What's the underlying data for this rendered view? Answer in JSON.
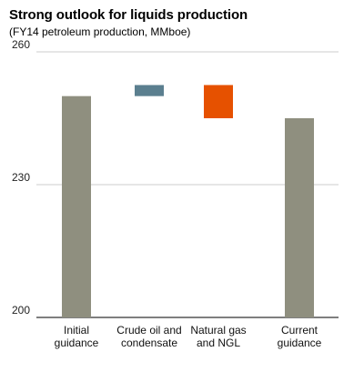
{
  "chart_data": {
    "type": "waterfall",
    "title": "Strong outlook for liquids production",
    "subtitle": "(FY14 petroleum production, MMboe)",
    "xlabel": "",
    "ylabel": "",
    "ylim": [
      200,
      260
    ],
    "yticks": [
      200,
      230,
      260
    ],
    "grid": true,
    "categories": [
      [
        "Initial",
        "guidance"
      ],
      [
        "Crude oil and",
        "condensate"
      ],
      [
        "Natural gas",
        "and NGL"
      ],
      [
        "Current",
        "guidance"
      ]
    ],
    "bars": [
      {
        "kind": "total",
        "start": 200,
        "end": 250,
        "color": "#8f8f7f"
      },
      {
        "kind": "step",
        "start": 250,
        "end": 252.5,
        "color": "#5b7f8f"
      },
      {
        "kind": "step",
        "start": 252.5,
        "end": 245,
        "color": "#e65100"
      },
      {
        "kind": "total",
        "start": 200,
        "end": 245,
        "color": "#8f8f7f"
      }
    ]
  }
}
